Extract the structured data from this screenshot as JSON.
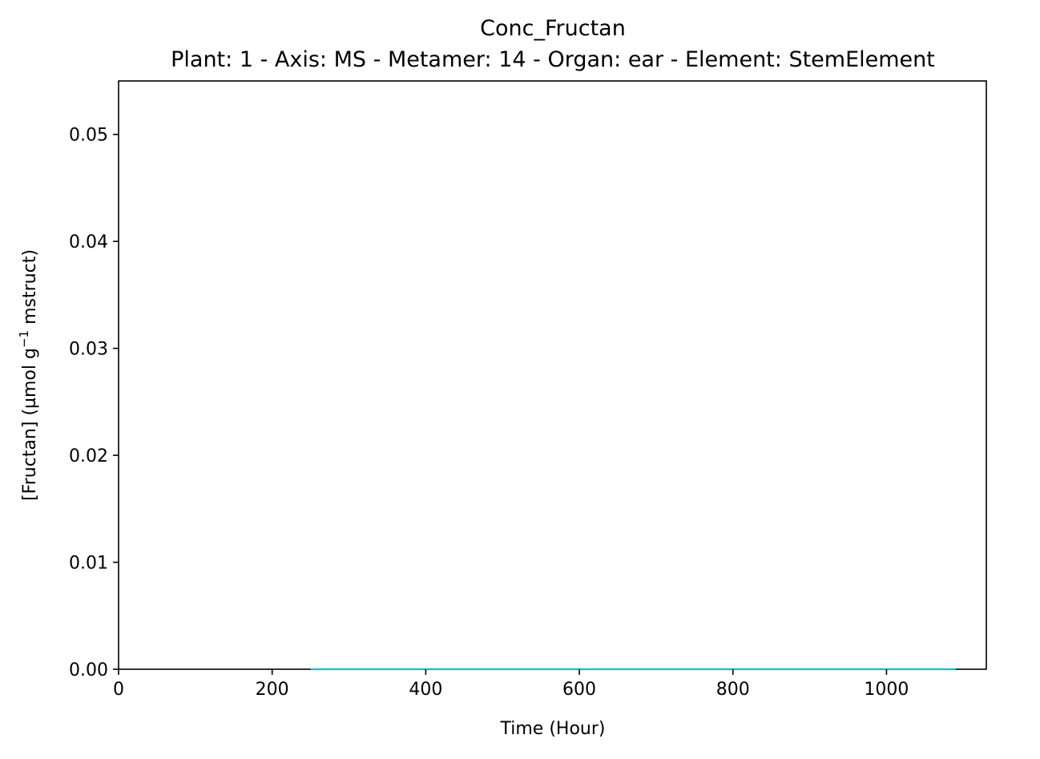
{
  "chart_data": {
    "type": "line",
    "title": "Conc_Fructan",
    "subtitle": "Plant: 1 - Axis: MS - Metamer: 14 - Organ: ear - Element: StemElement",
    "xlabel": "Time (Hour)",
    "ylabel": {
      "prefix": "[Fructan] (µmol g",
      "superscript": "−1",
      "suffix": " mstruct)"
    },
    "xlim": [
      0,
      1130
    ],
    "ylim": [
      0,
      0.055
    ],
    "x_ticks": [
      0,
      200,
      400,
      600,
      800,
      1000
    ],
    "x_tick_labels": [
      "0",
      "200",
      "400",
      "600",
      "800",
      "1000"
    ],
    "y_ticks": [
      0,
      0.01,
      0.02,
      0.03,
      0.04,
      0.05
    ],
    "y_tick_labels": [
      "0.00",
      "0.01",
      "0.02",
      "0.03",
      "0.04",
      "0.05"
    ],
    "grid": false,
    "series": [
      {
        "color": "#17becf",
        "x": [
          250,
          1090
        ],
        "y": [
          0,
          0
        ]
      }
    ]
  }
}
